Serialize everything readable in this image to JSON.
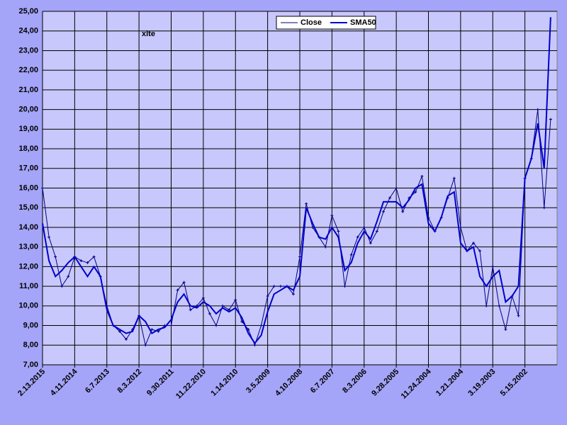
{
  "chart_data": {
    "type": "line",
    "title": "xlte",
    "categories": [
      "2.13.2015",
      null,
      null,
      null,
      null,
      "4.11.2014",
      null,
      null,
      null,
      null,
      "6.7.2013",
      null,
      null,
      null,
      null,
      "8.3.2012",
      null,
      null,
      null,
      null,
      "9.30.2011",
      null,
      null,
      null,
      null,
      "11.22.2010",
      null,
      null,
      null,
      null,
      "1.14.2010",
      null,
      null,
      null,
      null,
      "3.5.2009",
      null,
      null,
      null,
      null,
      "4.10.2008",
      null,
      null,
      null,
      null,
      "6.7.2007",
      null,
      null,
      null,
      null,
      "8.3.2006",
      null,
      null,
      null,
      null,
      "9.28.2005",
      null,
      null,
      null,
      null,
      "11.24.2004",
      null,
      null,
      null,
      null,
      "1.21.2004",
      null,
      null,
      null,
      null,
      "3.19.2003",
      null,
      null,
      null,
      null,
      "5.15.2002",
      null,
      null,
      null,
      null
    ],
    "series": [
      {
        "name": "Close",
        "color": "#000080",
        "markers": true,
        "values": [
          16.0,
          13.5,
          12.5,
          11.0,
          11.5,
          12.5,
          12.3,
          12.2,
          12.5,
          11.5,
          10.0,
          9.0,
          8.7,
          8.3,
          8.8,
          9.5,
          8.0,
          8.8,
          8.7,
          9.0,
          9.0,
          10.8,
          11.2,
          9.8,
          10.0,
          10.4,
          9.6,
          9.0,
          10.0,
          9.8,
          10.3,
          9.2,
          8.8,
          8.0,
          9.0,
          10.5,
          11.0,
          11.0,
          11.0,
          10.6,
          12.5,
          15.2,
          14.0,
          13.5,
          13.0,
          14.6,
          13.8,
          11.0,
          12.6,
          13.5,
          14.0,
          13.2,
          13.8,
          14.8,
          15.5,
          16.0,
          14.8,
          15.5,
          15.8,
          16.6,
          14.5,
          13.8,
          14.5,
          15.5,
          16.5,
          14.0,
          12.8,
          13.2,
          12.8,
          10.0,
          12.0,
          10.0,
          8.8,
          10.5,
          9.5,
          16.5,
          17.5,
          20.0,
          15.0,
          19.5
        ]
      },
      {
        "name": "SMA50",
        "color": "#0000cc",
        "markers": false,
        "values": [
          14.2,
          12.3,
          11.5,
          11.8,
          12.2,
          12.5,
          12.0,
          11.5,
          12.0,
          11.5,
          9.8,
          9.0,
          8.8,
          8.6,
          8.7,
          9.5,
          9.2,
          8.6,
          8.8,
          8.9,
          9.3,
          10.2,
          10.6,
          10.0,
          9.9,
          10.2,
          10.0,
          9.6,
          9.9,
          9.7,
          9.9,
          9.4,
          8.6,
          8.1,
          8.5,
          9.7,
          10.6,
          10.8,
          11.0,
          10.8,
          11.5,
          15.0,
          14.2,
          13.5,
          13.4,
          14.0,
          13.5,
          11.8,
          12.2,
          13.2,
          13.8,
          13.4,
          14.3,
          15.3,
          15.3,
          15.3,
          15.0,
          15.4,
          16.0,
          16.2,
          14.2,
          13.8,
          14.5,
          15.6,
          15.8,
          13.2,
          12.8,
          13.0,
          11.5,
          11.0,
          11.5,
          11.8,
          10.2,
          10.5,
          11.0,
          16.5,
          17.5,
          19.3,
          17.0,
          24.7
        ]
      }
    ],
    "ylim": [
      7,
      25
    ],
    "yticks": [
      {
        "value": 7,
        "label": "7,00"
      },
      {
        "value": 8,
        "label": "8,00"
      },
      {
        "value": 9,
        "label": "9,00"
      },
      {
        "value": 10,
        "label": "10,00"
      },
      {
        "value": 11,
        "label": "11,00"
      },
      {
        "value": 12,
        "label": "12,00"
      },
      {
        "value": 13,
        "label": "13,00"
      },
      {
        "value": 14,
        "label": "14,00"
      },
      {
        "value": 15,
        "label": "15,00"
      },
      {
        "value": 16,
        "label": "16,00"
      },
      {
        "value": 17,
        "label": "17,00"
      },
      {
        "value": 18,
        "label": "18,00"
      },
      {
        "value": 19,
        "label": "19,00"
      },
      {
        "value": 20,
        "label": "20,00"
      },
      {
        "value": 21,
        "label": "21,00"
      },
      {
        "value": 22,
        "label": "22,00"
      },
      {
        "value": 23,
        "label": "23,00"
      },
      {
        "value": 24,
        "label": "24,00"
      },
      {
        "value": 25,
        "label": "25,00"
      }
    ],
    "grid": true,
    "legend": "top"
  }
}
